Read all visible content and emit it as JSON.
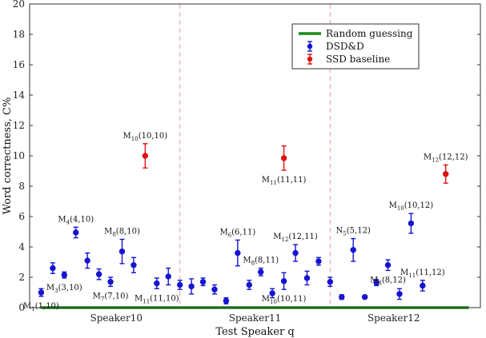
{
  "chart_data": {
    "type": "scatter",
    "title": "",
    "xlabel": "Test Speaker q",
    "ylabel": "Word correctness, C%",
    "ylim": [
      0,
      20
    ],
    "yticks": [
      0,
      2,
      4,
      6,
      8,
      10,
      12,
      14,
      16,
      18,
      20
    ],
    "xlim": [
      0,
      39
    ],
    "groups": [
      {
        "label": "Speaker10",
        "center": 7.5
      },
      {
        "label": "Speaker11",
        "center": 19.5
      },
      {
        "label": "Speaker12",
        "center": 31.5
      }
    ],
    "group_separators": [
      13,
      26
    ],
    "grid": false,
    "legend_position": "top-right",
    "legend": [
      {
        "label": "Random guessing",
        "color": "#1a8a1a",
        "kind": "line"
      },
      {
        "label": "DSD&D",
        "color": "#1515d0",
        "kind": "errorbar"
      },
      {
        "label": "SSD baseline",
        "color": "#dd1111",
        "kind": "errorbar"
      }
    ],
    "random_guessing": {
      "x": [
        1,
        38
      ],
      "y": 0
    },
    "colors": {
      "dsdd": "#1515d0",
      "ssd": "#dd1111",
      "random": "#1a8a1a",
      "separator": "#f09a9a"
    },
    "series": [
      {
        "name": "DSD&D",
        "points": [
          {
            "x": 1,
            "y": 1.0,
            "err": 0.25
          },
          {
            "x": 2,
            "y": 2.6,
            "err": 0.35
          },
          {
            "x": 3,
            "y": 2.15,
            "err": 0.2
          },
          {
            "x": 4,
            "y": 4.95,
            "err": 0.35
          },
          {
            "x": 5,
            "y": 3.1,
            "err": 0.5
          },
          {
            "x": 6,
            "y": 2.2,
            "err": 0.35
          },
          {
            "x": 7,
            "y": 1.7,
            "err": 0.3
          },
          {
            "x": 8,
            "y": 3.7,
            "err": 0.8
          },
          {
            "x": 9,
            "y": 2.8,
            "err": 0.5
          },
          {
            "x": 11,
            "y": 1.6,
            "err": 0.35
          },
          {
            "x": 12,
            "y": 2.05,
            "err": 0.55
          },
          {
            "x": 13,
            "y": 1.5,
            "err": 0.3
          },
          {
            "x": 14,
            "y": 1.4,
            "err": 0.5
          },
          {
            "x": 15,
            "y": 1.7,
            "err": 0.25
          },
          {
            "x": 16,
            "y": 1.2,
            "err": 0.3
          },
          {
            "x": 17,
            "y": 0.45,
            "err": 0.2
          },
          {
            "x": 18,
            "y": 3.6,
            "err": 0.85
          },
          {
            "x": 19,
            "y": 1.5,
            "err": 0.3
          },
          {
            "x": 20,
            "y": 2.35,
            "err": 0.25
          },
          {
            "x": 21,
            "y": 0.95,
            "err": 0.3
          },
          {
            "x": 22,
            "y": 1.75,
            "err": 0.55
          },
          {
            "x": 23,
            "y": 3.6,
            "err": 0.55
          },
          {
            "x": 24,
            "y": 1.95,
            "err": 0.45
          },
          {
            "x": 25,
            "y": 3.05,
            "err": 0.25
          },
          {
            "x": 26,
            "y": 1.7,
            "err": 0.3
          },
          {
            "x": 27,
            "y": 0.7,
            "err": 0.15
          },
          {
            "x": 28,
            "y": 3.8,
            "err": 0.75
          },
          {
            "x": 29,
            "y": 0.7,
            "err": 0.1
          },
          {
            "x": 30,
            "y": 1.65,
            "err": 0.2
          },
          {
            "x": 31,
            "y": 2.8,
            "err": 0.35
          },
          {
            "x": 32,
            "y": 0.9,
            "err": 0.35
          },
          {
            "x": 33,
            "y": 5.55,
            "err": 0.65
          },
          {
            "x": 34,
            "y": 1.45,
            "err": 0.35
          }
        ]
      },
      {
        "name": "SSD baseline",
        "points": [
          {
            "x": 10,
            "y": 10.0,
            "err": 0.8
          },
          {
            "x": 22,
            "y": 9.85,
            "err": 0.8
          },
          {
            "x": 36,
            "y": 8.8,
            "err": 0.6
          }
        ]
      }
    ],
    "annotations": [
      {
        "base": "M",
        "sub": "1",
        "rest": "(1,10)",
        "x": 1,
        "y": 1.0,
        "pos": "below"
      },
      {
        "base": "M",
        "sub": "3",
        "rest": "(3,10)",
        "x": 3,
        "y": 2.15,
        "pos": "below"
      },
      {
        "base": "M",
        "sub": "4",
        "rest": "(4,10)",
        "x": 4,
        "y": 4.95,
        "pos": "above"
      },
      {
        "base": "M",
        "sub": "7",
        "rest": "(7,10)",
        "x": 7,
        "y": 1.7,
        "pos": "below"
      },
      {
        "base": "M",
        "sub": "8",
        "rest": "(8,10)",
        "x": 8,
        "y": 3.7,
        "pos": "above"
      },
      {
        "base": "M",
        "sub": "10",
        "rest": "(10,10)",
        "x": 10,
        "y": 10.0,
        "pos": "above"
      },
      {
        "base": "M",
        "sub": "11",
        "rest": "(11,10)",
        "x": 11,
        "y": 1.6,
        "pos": "below"
      },
      {
        "base": "M",
        "sub": "6",
        "rest": "(6,11)",
        "x": 18,
        "y": 3.6,
        "pos": "above"
      },
      {
        "base": "M",
        "sub": "8",
        "rest": "(8,11)",
        "x": 20,
        "y": 2.35,
        "pos": "above"
      },
      {
        "base": "M",
        "sub": "10",
        "rest": "(10,11)",
        "x": 22,
        "y": 1.75,
        "pos": "below"
      },
      {
        "base": "M",
        "sub": "11",
        "rest": "(11,11)",
        "x": 22,
        "y": 9.85,
        "pos": "below"
      },
      {
        "base": "M",
        "sub": "12",
        "rest": "(12,11)",
        "x": 23,
        "y": 3.6,
        "pos": "above"
      },
      {
        "base": "N",
        "sub": "5",
        "rest": "(5,12)",
        "x": 28,
        "y": 3.8,
        "pos": "above"
      },
      {
        "base": "M",
        "sub": "8",
        "rest": "(8,12)",
        "x": 31,
        "y": 2.8,
        "pos": "below"
      },
      {
        "base": "M",
        "sub": "10",
        "rest": "(10,12)",
        "x": 33,
        "y": 5.55,
        "pos": "above"
      },
      {
        "base": "M",
        "sub": "11",
        "rest": "(11,12)",
        "x": 34,
        "y": 1.45,
        "pos": "above"
      },
      {
        "base": "M",
        "sub": "12",
        "rest": "(12,12)",
        "x": 36,
        "y": 8.8,
        "pos": "above"
      }
    ]
  }
}
